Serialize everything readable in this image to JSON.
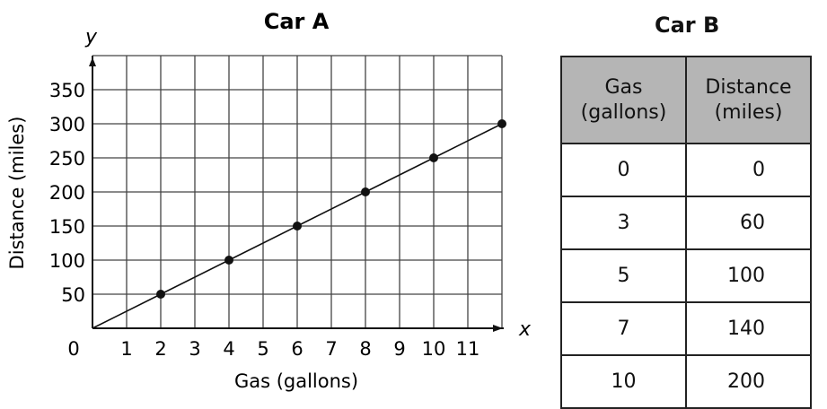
{
  "chart_data": {
    "type": "line",
    "title": "Car A",
    "xlabel": "Gas (gallons)",
    "ylabel": "Distance (miles)",
    "x_axis_letter": "x",
    "y_axis_letter": "y",
    "xlim": [
      0,
      12
    ],
    "ylim": [
      0,
      400
    ],
    "x_ticks": [
      "0",
      "1",
      "2",
      "3",
      "4",
      "5",
      "6",
      "7",
      "8",
      "9",
      "10",
      "11"
    ],
    "y_ticks": [
      "50",
      "100",
      "150",
      "200",
      "250",
      "300",
      "350"
    ],
    "grid": true,
    "series": [
      {
        "name": "Car A",
        "x": [
          0,
          2,
          4,
          6,
          8,
          10,
          12
        ],
        "y": [
          0,
          50,
          100,
          150,
          200,
          250,
          300
        ],
        "points_x": [
          2,
          4,
          6,
          8,
          10,
          12
        ],
        "points_y": [
          50,
          100,
          150,
          200,
          250,
          300
        ]
      }
    ]
  },
  "table": {
    "title": "Car B",
    "headers": [
      "Gas (gallons)",
      "Distance (miles)"
    ],
    "header_lines": [
      [
        "Gas",
        "(gallons)"
      ],
      [
        "Distance",
        "(miles)"
      ]
    ],
    "rows": [
      [
        "0",
        "0"
      ],
      [
        "3",
        "60"
      ],
      [
        "5",
        "100"
      ],
      [
        "7",
        "140"
      ],
      [
        "10",
        "200"
      ]
    ]
  }
}
